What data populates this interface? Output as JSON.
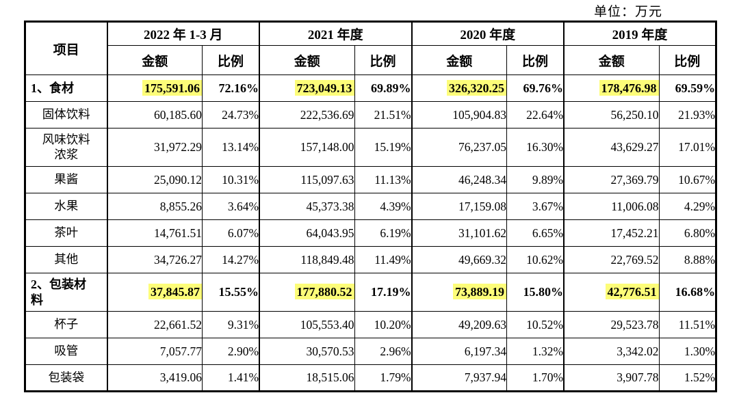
{
  "unit_label": "单位：万元",
  "colors": {
    "highlight": "#fdfd79",
    "border": "#000000",
    "background": "#ffffff"
  },
  "table": {
    "item_header": "项目",
    "periods": [
      "2022 年 1-3 月",
      "2021 年度",
      "2020 年度",
      "2019 年度"
    ],
    "sub_headers": [
      "金额",
      "比例"
    ],
    "rows": [
      {
        "label": "1、食材",
        "highlight": true,
        "values": [
          "175,591.06",
          "72.16%",
          "723,049.13",
          "69.89%",
          "326,320.25",
          "69.76%",
          "178,476.98",
          "69.59%"
        ]
      },
      {
        "label": "固体饮料",
        "highlight": false,
        "values": [
          "60,185.60",
          "24.73%",
          "222,536.69",
          "21.51%",
          "105,904.83",
          "22.64%",
          "56,250.10",
          "21.93%"
        ]
      },
      {
        "label": "风味饮料\n浓浆",
        "highlight": false,
        "values": [
          "31,972.29",
          "13.14%",
          "157,148.00",
          "15.19%",
          "76,237.05",
          "16.30%",
          "43,629.27",
          "17.01%"
        ]
      },
      {
        "label": "果酱",
        "highlight": false,
        "values": [
          "25,090.12",
          "10.31%",
          "115,097.63",
          "11.13%",
          "46,248.34",
          "9.89%",
          "27,369.79",
          "10.67%"
        ]
      },
      {
        "label": "水果",
        "highlight": false,
        "values": [
          "8,855.26",
          "3.64%",
          "45,373.38",
          "4.39%",
          "17,159.08",
          "3.67%",
          "11,006.08",
          "4.29%"
        ]
      },
      {
        "label": "茶叶",
        "highlight": false,
        "values": [
          "14,761.51",
          "6.07%",
          "64,043.95",
          "6.19%",
          "31,101.62",
          "6.65%",
          "17,452.21",
          "6.80%"
        ]
      },
      {
        "label": "其他",
        "highlight": false,
        "values": [
          "34,726.27",
          "14.27%",
          "118,849.48",
          "11.49%",
          "49,669.32",
          "10.62%",
          "22,769.52",
          "8.88%"
        ]
      },
      {
        "label": "2、包装材\n料",
        "highlight": true,
        "values": [
          "37,845.87",
          "15.55%",
          "177,880.52",
          "17.19%",
          "73,889.19",
          "15.80%",
          "42,776.51",
          "16.68%"
        ]
      },
      {
        "label": "杯子",
        "highlight": false,
        "values": [
          "22,661.52",
          "9.31%",
          "105,553.40",
          "10.20%",
          "49,209.63",
          "10.52%",
          "29,523.78",
          "11.51%"
        ]
      },
      {
        "label": "吸管",
        "highlight": false,
        "values": [
          "7,057.77",
          "2.90%",
          "30,570.53",
          "2.96%",
          "6,197.34",
          "1.32%",
          "3,342.02",
          "1.30%"
        ]
      },
      {
        "label": "包装袋",
        "highlight": false,
        "values": [
          "3,419.06",
          "1.41%",
          "18,515.06",
          "1.79%",
          "7,937.94",
          "1.70%",
          "3,907.78",
          "1.52%"
        ]
      }
    ]
  }
}
